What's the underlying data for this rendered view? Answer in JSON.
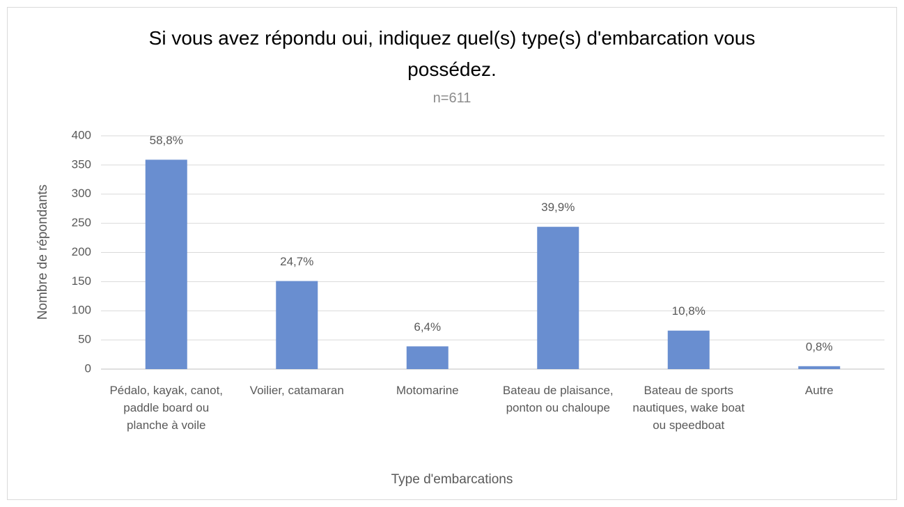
{
  "chart_data": {
    "type": "bar",
    "title": "Si vous avez répondu oui, indiquez quel(s) type(s) d'embarcation vous possédez.",
    "subtitle": "n=611",
    "x_label": "Type d'embarcations",
    "y_label": "Nombre de répondants",
    "categories": [
      "Pédalo, kayak, canot, paddle board ou planche à voile",
      "Voilier, catamaran",
      "Motomarine",
      "Bateau de plaisance, ponton ou chaloupe",
      "Bateau de sports nautiques, wake boat ou speedboat",
      "Autre"
    ],
    "values": [
      359,
      151,
      39,
      244,
      66,
      5
    ],
    "value_labels": [
      "58,8%",
      "24,7%",
      "6,4%",
      "39,9%",
      "10,8%",
      "0,8%"
    ],
    "color": "#698ed0",
    "ylim": [
      0,
      400
    ],
    "yticks": [
      0,
      50,
      100,
      150,
      200,
      250,
      300,
      350,
      400
    ],
    "grid": true
  }
}
